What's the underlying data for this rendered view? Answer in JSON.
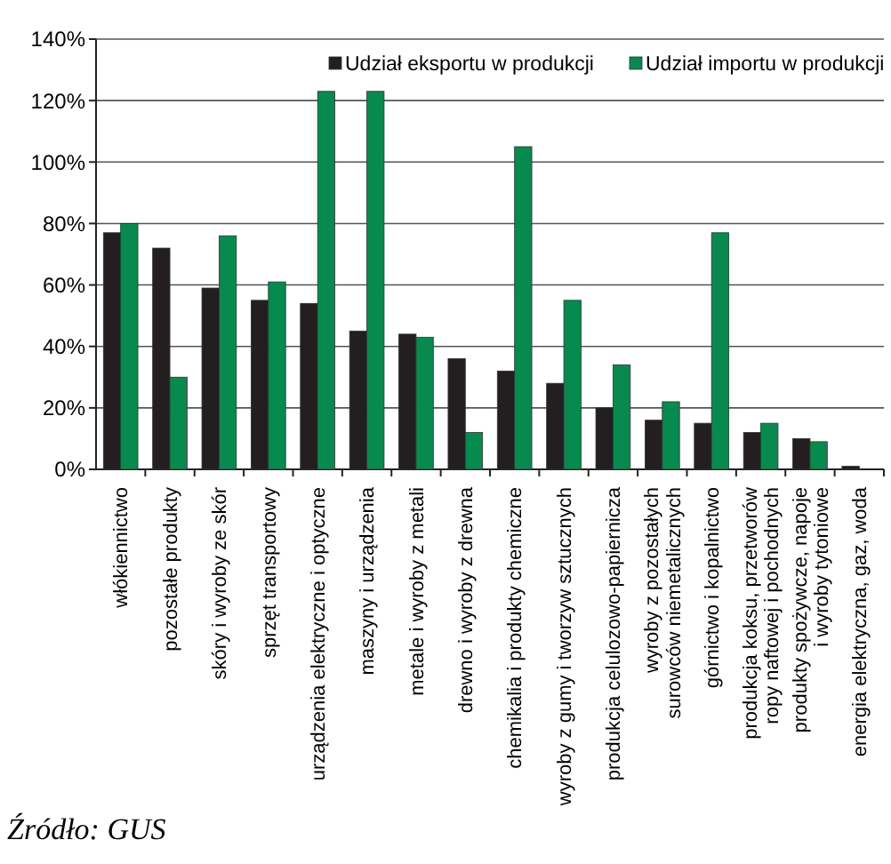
{
  "chart_data": {
    "type": "bar",
    "categories": [
      "włókiennictwo",
      "pozostałe produkty",
      "skóry i wyroby ze skór",
      "sprzęt transportowy",
      "urządzenia elektryczne i optyczne",
      "maszyny i urządzenia",
      "metale i wyroby z metali",
      "drewno i wyroby z drewna",
      "chemikalia i produkty chemiczne",
      "wyroby z gumy i tworzyw sztucznych",
      "produkcja celulozowo-papiernicza",
      "wyroby z pozostałych\nsurowców niemetalicznych",
      "górnictwo i kopalnictwo",
      "produkcja koksu, przetworów\nropy naftowej i pochodnych",
      "produkty spożywcze, napoje\ni wyroby tytoniowe",
      "energia elektryczna, gaz, woda"
    ],
    "series": [
      {
        "name": "Udział eksportu w produkcji",
        "color": "#231f20",
        "values": [
          77,
          72,
          59,
          55,
          54,
          45,
          44,
          36,
          32,
          28,
          20,
          16,
          15,
          12,
          10,
          1
        ]
      },
      {
        "name": "Udział importu w produkcji",
        "color": "#078a4e",
        "values": [
          80,
          30,
          76,
          61,
          123,
          123,
          43,
          12,
          105,
          55,
          34,
          22,
          77,
          15,
          9,
          0
        ]
      }
    ],
    "ylim": [
      0,
      140
    ],
    "yticks": [
      {
        "value": 0,
        "label": "0%"
      },
      {
        "value": 20,
        "label": "20%"
      },
      {
        "value": 40,
        "label": "40%"
      },
      {
        "value": 60,
        "label": "60%"
      },
      {
        "value": 80,
        "label": "80%"
      },
      {
        "value": 100,
        "label": "100%"
      },
      {
        "value": 120,
        "label": "120%"
      },
      {
        "value": 140,
        "label": "140%"
      }
    ],
    "grid": "y",
    "legend": "top right",
    "annotations": [
      "Źródło: GUS"
    ]
  }
}
